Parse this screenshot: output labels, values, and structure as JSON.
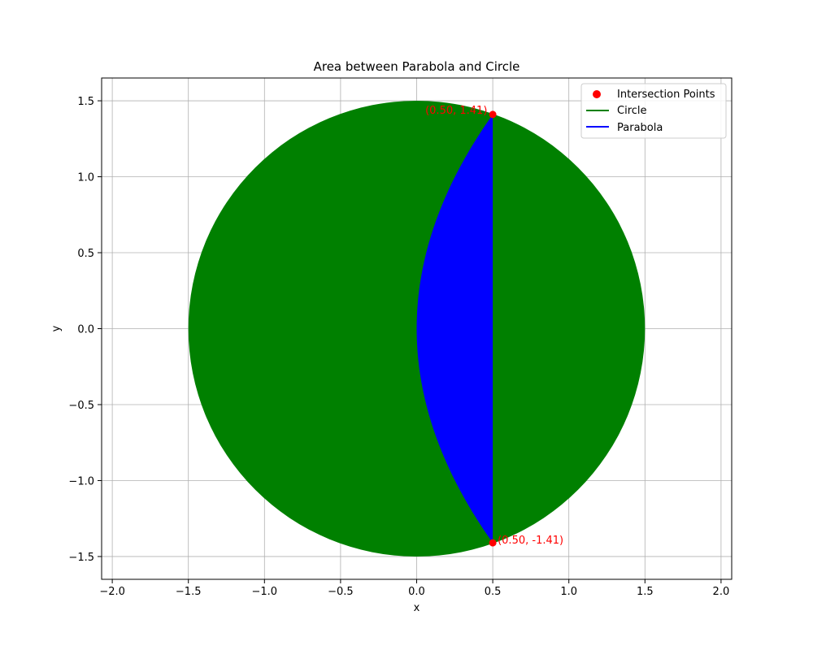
{
  "chart_data": {
    "type": "area",
    "title": "Area between Parabola and Circle",
    "xlabel": "x",
    "ylabel": "y",
    "xlim": [
      -2.07,
      2.07
    ],
    "ylim": [
      -1.65,
      1.65
    ],
    "grid": true,
    "legend_position": "top-right",
    "x_ticks": [
      -2.0,
      -1.5,
      -1.0,
      -0.5,
      0.0,
      0.5,
      1.0,
      1.5,
      2.0
    ],
    "x_tick_labels": [
      "−2.0",
      "−1.5",
      "−1.0",
      "−0.5",
      "0.0",
      "0.5",
      "1.0",
      "1.5",
      "2.0"
    ],
    "y_ticks": [
      -1.5,
      -1.0,
      -0.5,
      0.0,
      0.5,
      1.0,
      1.5
    ],
    "y_tick_labels": [
      "−1.5",
      "−1.0",
      "−0.5",
      "0.0",
      "0.5",
      "1.0",
      "1.5"
    ],
    "circle": {
      "name": "Circle",
      "center": [
        0,
        0
      ],
      "radius": 1.5,
      "color": "#008000"
    },
    "parabola": {
      "name": "Parabola",
      "equation": "y^2 = 4x",
      "x_range": [
        0,
        0.5
      ],
      "color": "#0000ff"
    },
    "intersection_points": {
      "name": "Intersection Points",
      "color": "#ff0000",
      "points": [
        {
          "x": 0.5,
          "y": 1.41,
          "label": "(0.50, 1.41)"
        },
        {
          "x": 0.5,
          "y": -1.41,
          "label": "(0.50, -1.41)"
        }
      ]
    },
    "legend": [
      "Intersection Points",
      "Circle",
      "Parabola"
    ]
  }
}
